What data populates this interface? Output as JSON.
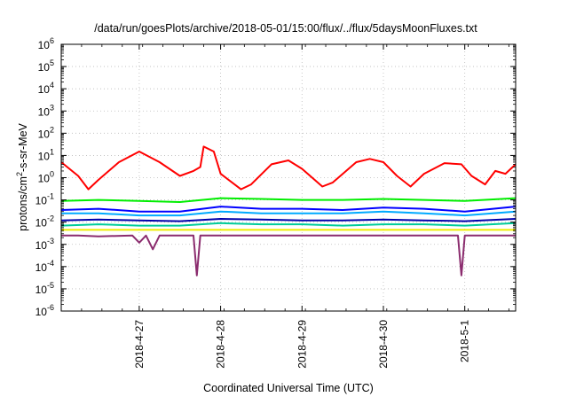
{
  "chart_data": {
    "type": "line",
    "title": "/data/run/goesPlots/archive/2018-05-01/15:00/flux/../flux/5daysMoonFluxes.txt",
    "xlabel": "Coordinated Universal Time (UTC)",
    "ylabel": "protons/cm²-s-sr-MeV",
    "ylabel_parts": {
      "pre": "protons/cm",
      "sup": "2",
      "post": "-s-sr-MeV"
    },
    "yscale": "log",
    "ylim": [
      1e-06,
      1000000.0
    ],
    "y_ticks": [
      {
        "base": "10",
        "exp": "-6",
        "value": 1e-06
      },
      {
        "base": "10",
        "exp": "-5",
        "value": 1e-05
      },
      {
        "base": "10",
        "exp": "-4",
        "value": 0.0001
      },
      {
        "base": "10",
        "exp": "-3",
        "value": 0.001
      },
      {
        "base": "10",
        "exp": "-2",
        "value": 0.01
      },
      {
        "base": "10",
        "exp": "-1",
        "value": 0.1
      },
      {
        "base": "10",
        "exp": "0",
        "value": 1
      },
      {
        "base": "10",
        "exp": "1",
        "value": 10
      },
      {
        "base": "10",
        "exp": "2",
        "value": 100
      },
      {
        "base": "10",
        "exp": "3",
        "value": 1000
      },
      {
        "base": "10",
        "exp": "4",
        "value": 10000
      },
      {
        "base": "10",
        "exp": "5",
        "value": 100000
      },
      {
        "base": "10",
        "exp": "6",
        "value": 1000000
      }
    ],
    "xlim": [
      "2018-04-26 01:00",
      "2018-05-01 15:00"
    ],
    "x_ticks": [
      "2018-4-27",
      "2018-4-28",
      "2018-4-29",
      "2018-4-30",
      "2018-5-1"
    ],
    "grid": true,
    "legend": "none",
    "series": [
      {
        "color": "#ff0000",
        "x": [
          "2018-04-26 01:00",
          "2018-04-26 06:00",
          "2018-04-26 09:00",
          "2018-04-26 12:00",
          "2018-04-26 18:00",
          "2018-04-27 00:00",
          "2018-04-27 06:00",
          "2018-04-27 12:00",
          "2018-04-27 16:00",
          "2018-04-27 18:00",
          "2018-04-27 19:00",
          "2018-04-27 22:00",
          "2018-04-28 00:00",
          "2018-04-28 06:00",
          "2018-04-28 09:00",
          "2018-04-28 15:00",
          "2018-04-28 20:00",
          "2018-04-29 00:00",
          "2018-04-29 06:00",
          "2018-04-29 09:00",
          "2018-04-29 16:00",
          "2018-04-29 20:00",
          "2018-04-30 00:00",
          "2018-04-30 04:00",
          "2018-04-30 08:00",
          "2018-04-30 12:00",
          "2018-04-30 18:00",
          "2018-04-30 23:00",
          "2018-05-01 02:00",
          "2018-05-01 06:00",
          "2018-05-01 09:00",
          "2018-05-01 12:00",
          "2018-05-01 15:00"
        ],
        "y": [
          5,
          1.2,
          0.3,
          0.8,
          5,
          15,
          5,
          1.2,
          2,
          3,
          25,
          15,
          1.5,
          0.3,
          0.5,
          4,
          6,
          2.5,
          0.4,
          0.6,
          5,
          7,
          5,
          1.2,
          0.4,
          1.5,
          4.5,
          4,
          1.2,
          0.5,
          2,
          1.5,
          4
        ]
      },
      {
        "color": "#00ee00",
        "x": [
          "2018-04-26 01:00",
          "2018-04-26 12:00",
          "2018-04-27 00:00",
          "2018-04-27 12:00",
          "2018-04-28 00:00",
          "2018-04-28 12:00",
          "2018-04-29 00:00",
          "2018-04-29 12:00",
          "2018-04-30 00:00",
          "2018-04-30 12:00",
          "2018-05-01 00:00",
          "2018-05-01 15:00"
        ],
        "y": [
          0.09,
          0.1,
          0.09,
          0.08,
          0.12,
          0.11,
          0.1,
          0.1,
          0.11,
          0.1,
          0.09,
          0.12
        ]
      },
      {
        "color": "#0000ff",
        "x": [
          "2018-04-26 01:00",
          "2018-04-26 12:00",
          "2018-04-27 00:00",
          "2018-04-27 12:00",
          "2018-04-28 00:00",
          "2018-04-28 12:00",
          "2018-04-29 00:00",
          "2018-04-29 12:00",
          "2018-04-30 00:00",
          "2018-04-30 12:00",
          "2018-05-01 00:00",
          "2018-05-01 15:00"
        ],
        "y": [
          0.035,
          0.04,
          0.03,
          0.03,
          0.05,
          0.04,
          0.04,
          0.035,
          0.045,
          0.04,
          0.03,
          0.05
        ]
      },
      {
        "color": "#00aaff",
        "x": [
          "2018-04-26 01:00",
          "2018-04-26 12:00",
          "2018-04-27 00:00",
          "2018-04-27 12:00",
          "2018-04-28 00:00",
          "2018-04-28 12:00",
          "2018-04-29 00:00",
          "2018-04-29 12:00",
          "2018-04-30 00:00",
          "2018-04-30 12:00",
          "2018-05-01 00:00",
          "2018-05-01 15:00"
        ],
        "y": [
          0.025,
          0.025,
          0.02,
          0.02,
          0.03,
          0.025,
          0.025,
          0.025,
          0.03,
          0.025,
          0.02,
          0.03
        ]
      },
      {
        "color": "#0000aa",
        "x": [
          "2018-04-26 01:00",
          "2018-04-26 12:00",
          "2018-04-27 00:00",
          "2018-04-27 12:00",
          "2018-04-28 00:00",
          "2018-04-28 12:00",
          "2018-04-29 00:00",
          "2018-04-29 12:00",
          "2018-04-30 00:00",
          "2018-04-30 12:00",
          "2018-05-01 00:00",
          "2018-05-01 15:00"
        ],
        "y": [
          0.012,
          0.013,
          0.012,
          0.011,
          0.014,
          0.013,
          0.012,
          0.012,
          0.013,
          0.012,
          0.011,
          0.014
        ]
      },
      {
        "color": "#00cc99",
        "x": [
          "2018-04-26 01:00",
          "2018-04-26 12:00",
          "2018-04-27 00:00",
          "2018-04-27 12:00",
          "2018-04-28 00:00",
          "2018-04-28 12:00",
          "2018-04-29 00:00",
          "2018-04-29 12:00",
          "2018-04-30 00:00",
          "2018-04-30 12:00",
          "2018-05-01 00:00",
          "2018-05-01 15:00"
        ],
        "y": [
          0.007,
          0.008,
          0.007,
          0.007,
          0.009,
          0.008,
          0.008,
          0.007,
          0.008,
          0.008,
          0.007,
          0.009
        ]
      },
      {
        "color": "#eeee00",
        "x": [
          "2018-04-26 01:00",
          "2018-04-26 12:00",
          "2018-04-27 00:00",
          "2018-04-27 12:00",
          "2018-04-28 00:00",
          "2018-04-28 12:00",
          "2018-04-29 00:00",
          "2018-04-29 12:00",
          "2018-04-30 00:00",
          "2018-04-30 12:00",
          "2018-05-01 00:00",
          "2018-05-01 15:00"
        ],
        "y": [
          0.0045,
          0.0045,
          0.0045,
          0.0045,
          0.0045,
          0.0045,
          0.0045,
          0.0045,
          0.0045,
          0.0045,
          0.0045,
          0.0045
        ]
      },
      {
        "color": "#8b2c6e",
        "x": [
          "2018-04-26 01:00",
          "2018-04-26 06:00",
          "2018-04-26 12:00",
          "2018-04-26 22:00",
          "2018-04-27 00:00",
          "2018-04-27 02:00",
          "2018-04-27 04:00",
          "2018-04-27 06:00",
          "2018-04-27 12:00",
          "2018-04-27 16:00",
          "2018-04-27 17:00",
          "2018-04-27 18:00",
          "2018-04-28 00:00",
          "2018-04-28 12:00",
          "2018-04-29 00:00",
          "2018-04-29 12:00",
          "2018-04-30 00:00",
          "2018-04-30 12:00",
          "2018-04-30 22:00",
          "2018-04-30 23:00",
          "2018-05-01 00:00",
          "2018-05-01 06:00",
          "2018-05-01 15:00"
        ],
        "y": [
          0.0025,
          0.0025,
          0.0023,
          0.0025,
          0.0012,
          0.0025,
          0.0006,
          0.0025,
          0.0025,
          0.0025,
          4e-05,
          0.0025,
          0.0025,
          0.0025,
          0.0025,
          0.0025,
          0.0025,
          0.0025,
          0.0025,
          4e-05,
          0.0025,
          0.0025,
          0.0025
        ]
      }
    ]
  }
}
